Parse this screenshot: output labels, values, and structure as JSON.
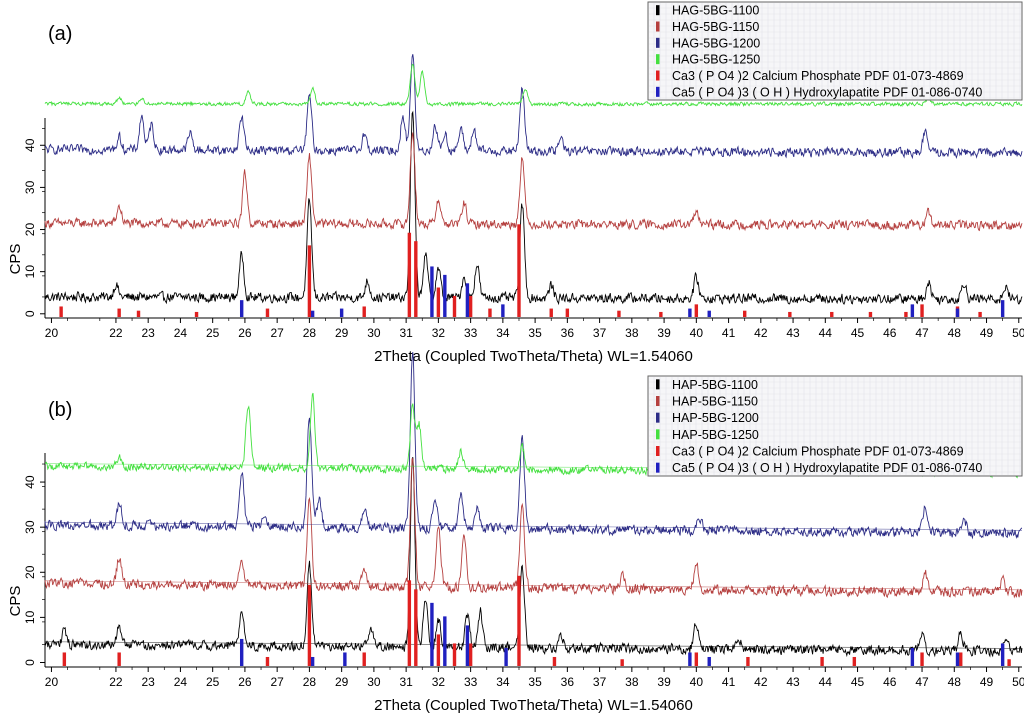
{
  "chart_data": [
    {
      "type": "line",
      "panel_label": "(a)",
      "xlabel": "2Theta (Coupled TwoTheta/Theta) WL=1.54060",
      "ylabel": "CPS",
      "xlim": [
        19.8,
        50.1
      ],
      "ylim": [
        -1,
        46
      ],
      "x_ticks": [
        20,
        22,
        23,
        24,
        25,
        26,
        27,
        28,
        29,
        30,
        31,
        32,
        33,
        34,
        35,
        36,
        37,
        38,
        39,
        40,
        41,
        42,
        43,
        44,
        45,
        46,
        47,
        48,
        49,
        50
      ],
      "y_ticks": [
        0,
        10,
        20,
        30,
        40
      ],
      "legend_position": "top-right",
      "series": [
        {
          "name": "HAG-5BG-1100",
          "color": "#000000",
          "offset": 4,
          "noise": 1.5,
          "base_slope": -0.5,
          "peaks": [
            [
              22.0,
              3
            ],
            [
              25.9,
              10
            ],
            [
              28.0,
              23
            ],
            [
              29.8,
              4
            ],
            [
              31.2,
              44
            ],
            [
              31.6,
              10
            ],
            [
              32.0,
              7
            ],
            [
              32.8,
              5
            ],
            [
              33.2,
              8
            ],
            [
              34.6,
              22
            ],
            [
              35.5,
              3
            ],
            [
              40.0,
              5
            ],
            [
              47.2,
              4
            ],
            [
              48.3,
              4
            ],
            [
              49.6,
              3
            ]
          ]
        },
        {
          "name": "HAG-5BG-1150",
          "color": "#b5403f",
          "offset": 21.5,
          "noise": 1.4,
          "base_slope": -0.5,
          "peaks": [
            [
              22.1,
              4
            ],
            [
              26.0,
              12
            ],
            [
              28.0,
              16
            ],
            [
              31.2,
              22
            ],
            [
              32.0,
              6
            ],
            [
              32.8,
              5
            ],
            [
              34.6,
              16
            ],
            [
              40.0,
              3
            ],
            [
              47.2,
              3
            ]
          ]
        },
        {
          "name": "HAG-5BG-1200",
          "color": "#2c2c86",
          "offset": 39,
          "noise": 1.4,
          "base_slope": -0.8,
          "peaks": [
            [
              22.1,
              3
            ],
            [
              22.8,
              8
            ],
            [
              23.1,
              6
            ],
            [
              24.3,
              4
            ],
            [
              25.9,
              8
            ],
            [
              28.0,
              13
            ],
            [
              29.7,
              4
            ],
            [
              30.9,
              8
            ],
            [
              31.2,
              23
            ],
            [
              31.9,
              6
            ],
            [
              32.2,
              4
            ],
            [
              32.7,
              5
            ],
            [
              33.1,
              5
            ],
            [
              34.6,
              15
            ],
            [
              35.8,
              3
            ],
            [
              47.1,
              5
            ]
          ]
        }
      ],
      "extra_series": [
        {
          "name": "HAG-5BG-1250",
          "color": "#44e03f",
          "role": "top trace (partly above plotted range)",
          "peaks": [
            [
              22.1,
              3
            ],
            [
              22.8,
              3
            ],
            [
              26.1,
              6
            ],
            [
              28.1,
              8
            ],
            [
              31.2,
              20
            ],
            [
              31.5,
              16
            ],
            [
              34.7,
              8
            ],
            [
              47.2,
              3
            ]
          ]
        }
      ],
      "reference_patterns": [
        {
          "name": "Ca3 ( P O4 )2 Calcium Phosphate PDF 01-073-4869",
          "color": "#e02020",
          "sticks": [
            [
              20.3,
              2.5
            ],
            [
              22.1,
              2
            ],
            [
              22.7,
              1.5
            ],
            [
              24.5,
              1.2
            ],
            [
              26.7,
              2
            ],
            [
              28.0,
              17
            ],
            [
              29.7,
              2.5
            ],
            [
              31.1,
              20
            ],
            [
              31.3,
              18
            ],
            [
              32.0,
              7
            ],
            [
              32.5,
              5
            ],
            [
              33.0,
              5
            ],
            [
              33.6,
              2
            ],
            [
              34.5,
              22
            ],
            [
              35.5,
              2
            ],
            [
              36.0,
              2
            ],
            [
              37.6,
              1.5
            ],
            [
              38.9,
              1.2
            ],
            [
              40.0,
              3
            ],
            [
              41.5,
              1.5
            ],
            [
              42.9,
              1.2
            ],
            [
              44.2,
              1.2
            ],
            [
              45.4,
              1.2
            ],
            [
              46.5,
              1.2
            ],
            [
              47.0,
              3
            ],
            [
              48.1,
              2.5
            ],
            [
              48.8,
              1.2
            ]
          ]
        },
        {
          "name": "Ca5 ( P O4 )3 ( O H ) Hydroxylapatite PDF 01-086-0740",
          "color": "#2020c0",
          "sticks": [
            [
              25.9,
              4
            ],
            [
              28.1,
              1.5
            ],
            [
              29.0,
              2
            ],
            [
              31.8,
              12
            ],
            [
              32.2,
              10
            ],
            [
              32.9,
              8
            ],
            [
              34.0,
              3
            ],
            [
              39.8,
              2
            ],
            [
              40.4,
              1.5
            ],
            [
              46.7,
              3
            ],
            [
              48.1,
              2
            ],
            [
              49.5,
              4
            ]
          ]
        }
      ]
    },
    {
      "type": "line",
      "panel_label": "(b)",
      "xlabel": "2Theta (Coupled TwoTheta/Theta) WL=1.54060",
      "ylabel": "CPS",
      "xlim": [
        19.8,
        50.1
      ],
      "ylim": [
        -1,
        46
      ],
      "x_ticks": [
        20,
        22,
        23,
        24,
        25,
        26,
        27,
        28,
        29,
        30,
        31,
        32,
        33,
        34,
        35,
        36,
        37,
        38,
        39,
        40,
        41,
        42,
        43,
        44,
        45,
        46,
        47,
        48,
        49,
        50
      ],
      "y_ticks": [
        0,
        10,
        20,
        30,
        40
      ],
      "legend_position": "top-right",
      "series": [
        {
          "name": "HAP-5BG-1100",
          "color": "#000000",
          "offset": 4,
          "noise": 1.4,
          "base_slope": -1.5,
          "peaks": [
            [
              20.4,
              3
            ],
            [
              22.1,
              4
            ],
            [
              25.9,
              8
            ],
            [
              28.0,
              18
            ],
            [
              29.9,
              4
            ],
            [
              31.2,
              42
            ],
            [
              31.6,
              10
            ],
            [
              32.0,
              6
            ],
            [
              32.9,
              7
            ],
            [
              33.3,
              8
            ],
            [
              34.6,
              18
            ],
            [
              35.8,
              3
            ],
            [
              40.0,
              6
            ],
            [
              41.3,
              3
            ],
            [
              47.0,
              4
            ],
            [
              48.2,
              4
            ],
            [
              49.6,
              3
            ]
          ]
        },
        {
          "name": "HAP-5BG-1150",
          "color": "#b5403f",
          "offset": 17.5,
          "noise": 1.4,
          "base_slope": -2.0,
          "peaks": [
            [
              22.1,
              6
            ],
            [
              25.9,
              6
            ],
            [
              28.0,
              19
            ],
            [
              29.7,
              4
            ],
            [
              31.2,
              28
            ],
            [
              32.0,
              14
            ],
            [
              32.8,
              11
            ],
            [
              34.6,
              18
            ],
            [
              37.7,
              3
            ],
            [
              40.0,
              6
            ],
            [
              47.1,
              4
            ],
            [
              49.5,
              3
            ]
          ]
        },
        {
          "name": "HAP-5BG-1200",
          "color": "#2c2c86",
          "offset": 30.5,
          "noise": 1.4,
          "base_slope": -1.8,
          "peaks": [
            [
              22.1,
              5
            ],
            [
              25.9,
              12
            ],
            [
              26.6,
              3
            ],
            [
              28.0,
              25
            ],
            [
              28.3,
              6
            ],
            [
              29.7,
              4
            ],
            [
              31.2,
              39
            ],
            [
              31.9,
              7
            ],
            [
              32.7,
              8
            ],
            [
              33.2,
              5
            ],
            [
              34.6,
              20
            ],
            [
              40.1,
              3
            ],
            [
              47.1,
              6
            ],
            [
              48.3,
              3
            ]
          ]
        },
        {
          "name": "HAP-5BG-1250",
          "color": "#44e03f",
          "offset": 43.5,
          "noise": 1.1,
          "base_slope": -1.5,
          "peaks": [
            [
              22.1,
              2
            ],
            [
              26.1,
              14
            ],
            [
              28.1,
              16
            ],
            [
              31.2,
              14
            ],
            [
              31.4,
              10
            ],
            [
              32.7,
              4
            ],
            [
              34.6,
              5
            ],
            [
              41.3,
              3
            ],
            [
              47.2,
              2
            ]
          ]
        }
      ],
      "reference_patterns": [
        {
          "name": "Ca3 ( P O4 )2 Calcium Phosphate PDF 01-073-4869",
          "color": "#e02020",
          "sticks": [
            [
              20.4,
              3
            ],
            [
              22.1,
              3
            ],
            [
              26.7,
              2
            ],
            [
              28.0,
              18
            ],
            [
              29.7,
              3
            ],
            [
              31.1,
              19
            ],
            [
              31.3,
              17
            ],
            [
              32.0,
              7
            ],
            [
              32.5,
              5
            ],
            [
              33.0,
              5
            ],
            [
              34.5,
              20
            ],
            [
              35.6,
              2
            ],
            [
              37.7,
              1.5
            ],
            [
              40.0,
              3
            ],
            [
              41.6,
              2
            ],
            [
              43.9,
              2
            ],
            [
              44.9,
              2
            ],
            [
              47.0,
              3
            ],
            [
              48.2,
              3
            ],
            [
              49.7,
              1.5
            ]
          ]
        },
        {
          "name": "Ca5 ( P O4 )3 ( O H ) Hydroxylapatite PDF 01-086-0740",
          "color": "#2020c0",
          "sticks": [
            [
              25.9,
              6
            ],
            [
              28.1,
              2
            ],
            [
              29.1,
              3
            ],
            [
              31.8,
              14
            ],
            [
              32.2,
              11
            ],
            [
              32.9,
              9
            ],
            [
              34.1,
              4
            ],
            [
              39.8,
              3
            ],
            [
              40.4,
              2
            ],
            [
              46.7,
              4
            ],
            [
              48.1,
              3
            ],
            [
              49.5,
              5
            ]
          ]
        }
      ]
    }
  ]
}
